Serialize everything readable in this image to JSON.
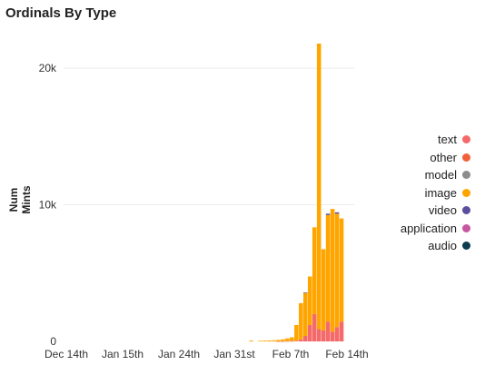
{
  "chart_data": {
    "type": "bar",
    "stacked": true,
    "title": "Ordinals By Type",
    "ylabel": "Num Mints",
    "xlabel": "",
    "ylim": [
      0,
      22000
    ],
    "yticks": [
      {
        "value": 0,
        "label": "0"
      },
      {
        "value": 10000,
        "label": "10k"
      },
      {
        "value": 20000,
        "label": "20k"
      }
    ],
    "xticks": [
      {
        "date": "2022-12-14",
        "label": "Dec 14th"
      },
      {
        "date": "2023-01-15",
        "label": "Jan 15th"
      },
      {
        "date": "2023-01-24",
        "label": "Jan 24th"
      },
      {
        "date": "2023-01-31",
        "label": "Jan 31st"
      },
      {
        "date": "2023-02-07",
        "label": "Feb 7th"
      },
      {
        "date": "2023-02-14",
        "label": "Feb 14th"
      }
    ],
    "grid": "horizontal",
    "legend_position": "right",
    "series": [
      {
        "name": "text",
        "color": "#f46a6a"
      },
      {
        "name": "other",
        "color": "#f0613a"
      },
      {
        "name": "model",
        "color": "#8c8c8c"
      },
      {
        "name": "image",
        "color": "#ffa500"
      },
      {
        "name": "video",
        "color": "#5a4e9e"
      },
      {
        "name": "application",
        "color": "#c657a0"
      },
      {
        "name": "audio",
        "color": "#0b3d4f"
      }
    ],
    "bars": [
      {
        "date": "2023-01-24",
        "text": 0,
        "image": 60
      },
      {
        "date": "2023-01-26",
        "text": 0,
        "image": 50
      },
      {
        "date": "2023-01-27",
        "text": 0,
        "image": 60
      },
      {
        "date": "2023-01-28",
        "text": 0,
        "image": 70
      },
      {
        "date": "2023-01-29",
        "text": 0,
        "image": 80
      },
      {
        "date": "2023-01-30",
        "text": 10,
        "image": 100
      },
      {
        "date": "2023-01-31",
        "text": 10,
        "image": 140
      },
      {
        "date": "2023-02-01",
        "text": 20,
        "image": 200
      },
      {
        "date": "2023-02-02",
        "text": 30,
        "image": 270
      },
      {
        "date": "2023-02-03",
        "text": 50,
        "image": 1150
      },
      {
        "date": "2023-02-04",
        "text": 150,
        "image": 2650
      },
      {
        "date": "2023-02-05",
        "text": 400,
        "image": 3150,
        "video": 40
      },
      {
        "date": "2023-02-06",
        "text": 1200,
        "image": 3550
      },
      {
        "date": "2023-02-07",
        "text": 2000,
        "image": 6350
      },
      {
        "date": "2023-02-08",
        "text": 900,
        "image": 20900
      },
      {
        "date": "2023-02-09",
        "text": 800,
        "image": 5950
      },
      {
        "date": "2023-02-10",
        "text": 1450,
        "image": 7800,
        "video": 100
      },
      {
        "date": "2023-02-11",
        "text": 700,
        "image": 9000
      },
      {
        "date": "2023-02-12",
        "text": 1050,
        "image": 8300,
        "video": 100
      },
      {
        "date": "2023-02-13",
        "text": 1450,
        "image": 7550
      }
    ]
  }
}
